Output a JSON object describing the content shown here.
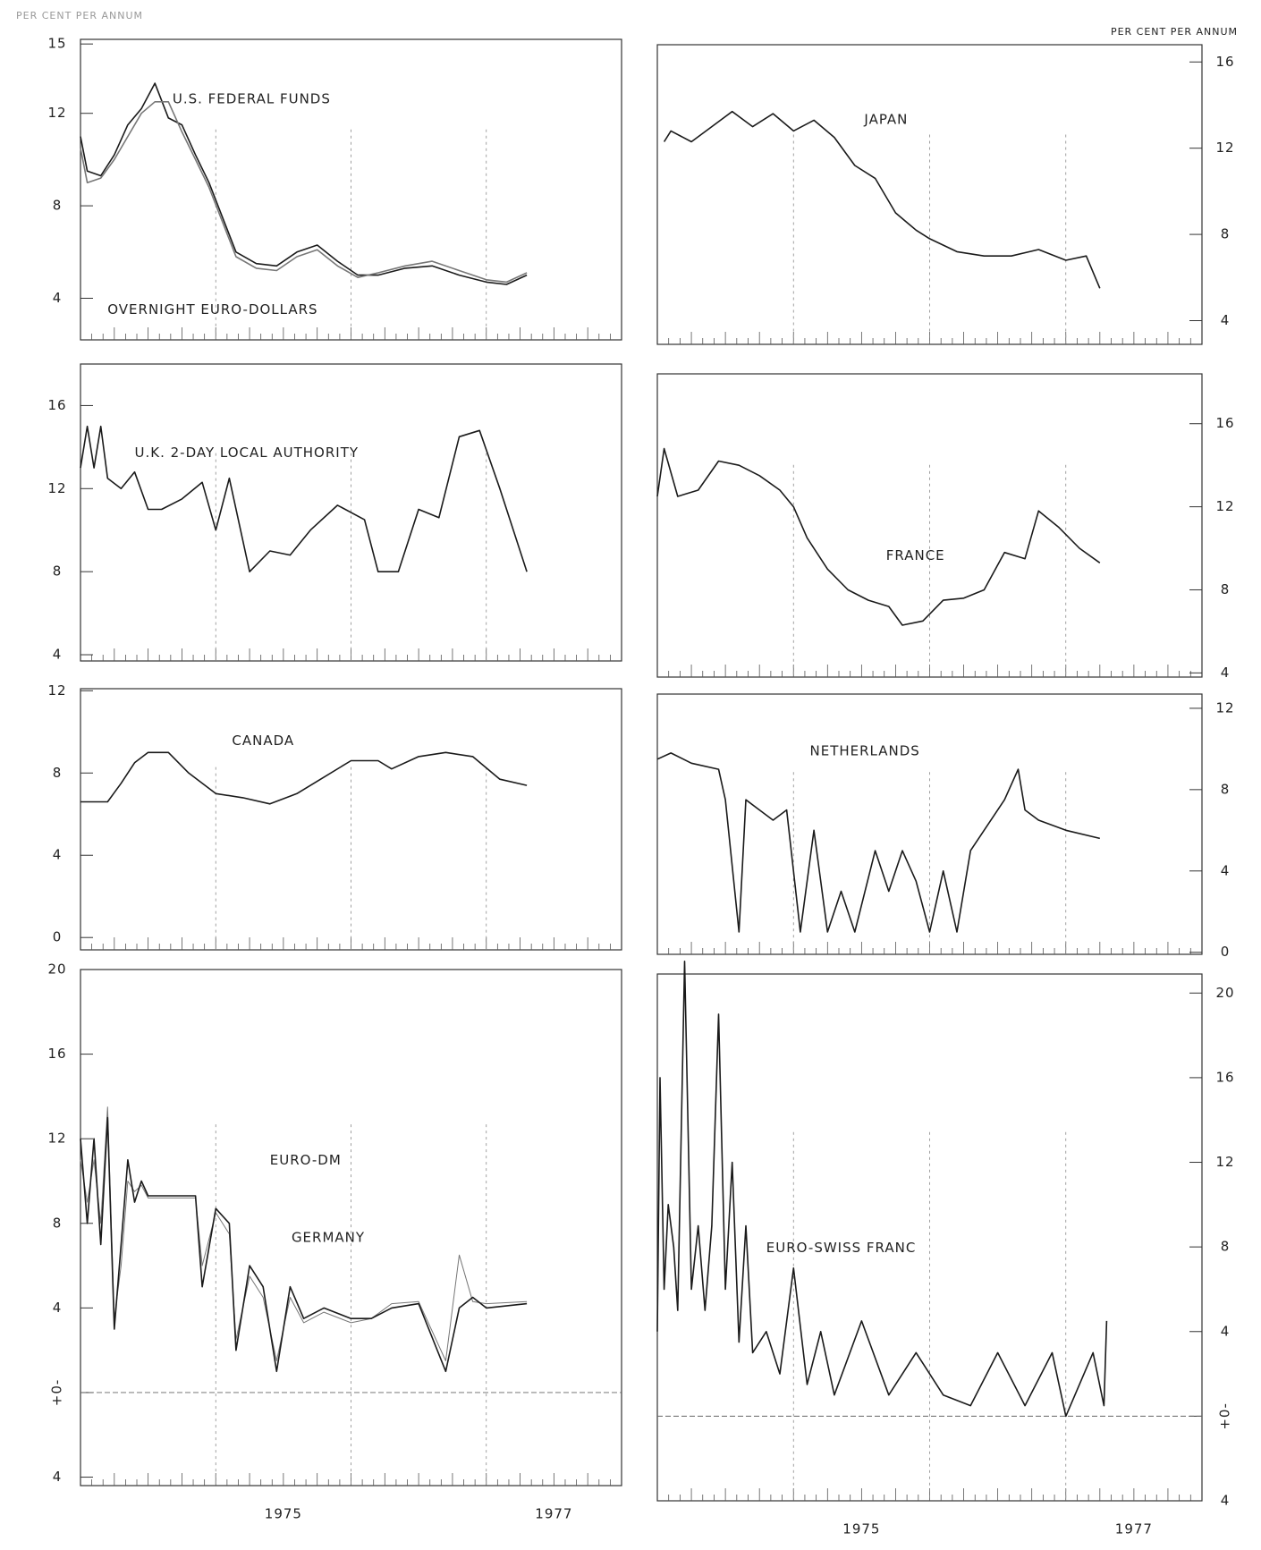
{
  "chart_data": [
    {
      "type": "line",
      "ylabel": "PER CENT PER ANNUM",
      "yaxis_side": "left",
      "xlim": [
        1974,
        1978
      ],
      "xticks": [
        1975,
        1976,
        1977
      ],
      "ylim": [
        2.2,
        15.2
      ],
      "yticks": [
        4,
        8,
        12,
        15
      ],
      "x": [
        1974.0,
        1974.05,
        1974.15,
        1974.25,
        1974.35,
        1974.45,
        1974.55,
        1974.65,
        1974.75,
        1974.85,
        1974.95,
        1975.05,
        1975.15,
        1975.3,
        1975.45,
        1975.6,
        1975.75,
        1975.9,
        1976.05,
        1976.2,
        1976.4,
        1976.6,
        1976.8,
        1977.0,
        1977.15,
        1977.3
      ],
      "series": [
        {
          "name": "U.S. FEDERAL FUNDS",
          "color": "#1a1a1a",
          "values": [
            11,
            9.5,
            9.3,
            10.2,
            11.5,
            12.2,
            13.3,
            11.8,
            11.5,
            10.2,
            9.0,
            7.5,
            6.0,
            5.5,
            5.4,
            6.0,
            6.3,
            5.6,
            5.0,
            5.0,
            5.3,
            5.4,
            5.0,
            4.7,
            4.6,
            5.0
          ]
        },
        {
          "name": "OVERNIGHT EURO-DOLLARS",
          "color": "#777777",
          "values": [
            10.5,
            9.0,
            9.2,
            10.0,
            11.0,
            12.0,
            12.5,
            12.5,
            11.2,
            10.0,
            8.8,
            7.3,
            5.8,
            5.3,
            5.2,
            5.8,
            6.1,
            5.4,
            4.9,
            5.1,
            5.4,
            5.6,
            5.2,
            4.8,
            4.7,
            5.1
          ]
        }
      ]
    },
    {
      "type": "line",
      "ylabel": "PER CENT PER ANNUM",
      "yaxis_side": "right",
      "xlim": [
        1974,
        1978
      ],
      "xticks": [
        1975,
        1976,
        1977
      ],
      "ylim": [
        2.9,
        16.8
      ],
      "yticks": [
        4,
        8,
        12,
        16
      ],
      "x": [
        1974.05,
        1974.1,
        1974.25,
        1974.4,
        1974.55,
        1974.7,
        1974.85,
        1975.0,
        1975.15,
        1975.3,
        1975.45,
        1975.6,
        1975.75,
        1975.9,
        1976.0,
        1976.2,
        1976.4,
        1976.6,
        1976.8,
        1977.0,
        1977.15,
        1977.25
      ],
      "series": [
        {
          "name": "JAPAN",
          "color": "#1a1a1a",
          "values": [
            12.3,
            12.8,
            12.3,
            13.0,
            13.7,
            13.0,
            13.6,
            12.8,
            13.3,
            12.5,
            11.2,
            10.6,
            9.0,
            8.2,
            7.8,
            7.2,
            7.0,
            7.0,
            7.3,
            6.8,
            7.0,
            5.5
          ]
        }
      ]
    },
    {
      "type": "line",
      "yaxis_side": "left",
      "xlim": [
        1974,
        1978
      ],
      "xticks": [
        1975,
        1976,
        1977
      ],
      "ylim": [
        3.7,
        18
      ],
      "yticks": [
        4,
        8,
        12,
        16
      ],
      "x": [
        1974.0,
        1974.05,
        1974.1,
        1974.15,
        1974.2,
        1974.3,
        1974.4,
        1974.5,
        1974.6,
        1974.75,
        1974.9,
        1975.0,
        1975.1,
        1975.25,
        1975.4,
        1975.55,
        1975.7,
        1975.9,
        1976.1,
        1976.2,
        1976.35,
        1976.5,
        1976.65,
        1976.8,
        1976.95,
        1977.1,
        1977.2,
        1977.3
      ],
      "series": [
        {
          "name": "U.K. 2-DAY LOCAL AUTHORITY",
          "color": "#1a1a1a",
          "values": [
            13,
            15,
            13,
            15,
            12.5,
            12,
            12.8,
            11,
            11,
            11.5,
            12.3,
            10,
            12.5,
            8,
            9,
            8.8,
            10,
            11.2,
            10.5,
            8,
            8,
            11,
            10.6,
            14.5,
            14.8,
            12,
            10,
            8
          ]
        }
      ]
    },
    {
      "type": "line",
      "yaxis_side": "right",
      "xlim": [
        1974,
        1978
      ],
      "xticks": [
        1975,
        1976,
        1977
      ],
      "ylim": [
        3.8,
        18.4
      ],
      "yticks": [
        4,
        8,
        12,
        16
      ],
      "x": [
        1974.0,
        1974.05,
        1974.15,
        1974.3,
        1974.45,
        1974.6,
        1974.75,
        1974.9,
        1975.0,
        1975.1,
        1975.25,
        1975.4,
        1975.55,
        1975.7,
        1975.8,
        1975.95,
        1976.1,
        1976.25,
        1976.4,
        1976.55,
        1976.7,
        1976.8,
        1976.95,
        1977.1,
        1977.25
      ],
      "series": [
        {
          "name": "FRANCE",
          "color": "#1a1a1a",
          "values": [
            12.5,
            14.8,
            12.5,
            12.8,
            14.2,
            14,
            13.5,
            12.8,
            12,
            10.5,
            9,
            8,
            7.5,
            7.2,
            6.3,
            6.5,
            7.5,
            7.6,
            8,
            9.8,
            9.5,
            11.8,
            11,
            10,
            9.3
          ]
        }
      ]
    },
    {
      "type": "line",
      "yaxis_side": "left",
      "xlim": [
        1974,
        1978
      ],
      "xticks": [
        1975,
        1976,
        1977
      ],
      "ylim": [
        -0.6,
        12.1
      ],
      "yticks": [
        0,
        4,
        8,
        12
      ],
      "x": [
        1974.0,
        1974.2,
        1974.3,
        1974.4,
        1974.5,
        1974.65,
        1974.8,
        1975.0,
        1975.2,
        1975.4,
        1975.6,
        1975.8,
        1976.0,
        1976.2,
        1976.3,
        1976.5,
        1976.7,
        1976.9,
        1977.1,
        1977.3
      ],
      "series": [
        {
          "name": "CANADA",
          "color": "#1a1a1a",
          "values": [
            6.6,
            6.6,
            7.5,
            8.5,
            9,
            9,
            8,
            7,
            6.8,
            6.5,
            7,
            7.8,
            8.6,
            8.6,
            8.2,
            8.8,
            9,
            8.8,
            7.7,
            7.4
          ]
        }
      ]
    },
    {
      "type": "line",
      "yaxis_side": "right",
      "xlim": [
        1974,
        1978
      ],
      "xticks": [
        1975,
        1976,
        1977
      ],
      "ylim": [
        -0.1,
        12.7
      ],
      "yticks": [
        0,
        4,
        8,
        12
      ],
      "x": [
        1974.0,
        1974.1,
        1974.25,
        1974.45,
        1974.5,
        1974.6,
        1974.65,
        1974.75,
        1974.85,
        1974.95,
        1975.05,
        1975.15,
        1975.25,
        1975.35,
        1975.45,
        1975.6,
        1975.7,
        1975.8,
        1975.9,
        1976.0,
        1976.1,
        1976.2,
        1976.3,
        1976.55,
        1976.65,
        1976.7,
        1976.8,
        1977.0,
        1977.25
      ],
      "series": [
        {
          "name": "NETHERLANDS",
          "color": "#1a1a1a",
          "values": [
            9.5,
            9.8,
            9.3,
            9,
            7.5,
            1,
            7.5,
            7,
            6.5,
            7,
            1,
            6,
            1,
            3,
            1,
            5,
            3,
            5,
            3.5,
            1,
            4,
            1,
            5,
            7.5,
            9,
            7,
            6.5,
            6,
            5.6
          ]
        }
      ]
    },
    {
      "type": "line",
      "yaxis_side": "left",
      "xlim": [
        1974,
        1978
      ],
      "xticks": [
        1975,
        1976,
        1977
      ],
      "xticklabels": [
        {
          "value": 1975.5,
          "label": "1975"
        },
        {
          "value": 1977.5,
          "label": "1977"
        }
      ],
      "ylim": [
        -4.4,
        20
      ],
      "yticks": [
        {
          "value": -4,
          "label": "4"
        },
        {
          "value": 0,
          "label": "+0-"
        },
        4,
        8,
        12,
        16,
        20
      ],
      "zero_line": true,
      "x": [
        1974.0,
        1974.05,
        1974.1,
        1974.15,
        1974.2,
        1974.25,
        1974.3,
        1974.35,
        1974.4,
        1974.45,
        1974.5,
        1974.6,
        1974.7,
        1974.85,
        1974.9,
        1975.0,
        1975.1,
        1975.15,
        1975.25,
        1975.35,
        1975.45,
        1975.55,
        1975.65,
        1975.8,
        1976.0,
        1976.15,
        1976.3,
        1976.5,
        1976.7,
        1976.8,
        1976.9,
        1977.0,
        1977.3
      ],
      "series": [
        {
          "name": "EURO-DM",
          "color": "#777777",
          "values": [
            11,
            9,
            11,
            8,
            13.5,
            3.5,
            6,
            10,
            9.5,
            9.8,
            9.2,
            9.2,
            9.2,
            9.2,
            6,
            8.5,
            7.5,
            2.5,
            5.5,
            4.5,
            1.5,
            4.5,
            3.3,
            3.8,
            3.3,
            3.5,
            4.2,
            4.3,
            1.5,
            6.5,
            4.3,
            4.2,
            4.3
          ]
        },
        {
          "name": "GERMANY",
          "color": "#1a1a1a",
          "values": [
            12,
            8,
            12,
            7,
            13,
            3,
            7,
            11,
            9,
            10,
            9.3,
            9.3,
            9.3,
            9.3,
            5,
            8.7,
            8,
            2,
            6,
            5,
            1,
            5,
            3.5,
            4,
            3.5,
            3.5,
            4,
            4.2,
            1,
            4,
            4.5,
            4,
            4.2
          ]
        }
      ]
    },
    {
      "type": "line",
      "yaxis_side": "right",
      "xlim": [
        1974,
        1978
      ],
      "xticks": [
        1975,
        1976,
        1977
      ],
      "xticklabels": [
        {
          "value": 1975.5,
          "label": "1975"
        },
        {
          "value": 1977.5,
          "label": "1977"
        }
      ],
      "ylim": [
        -4,
        20.9
      ],
      "yticks": [
        {
          "value": -4,
          "label": "4"
        },
        {
          "value": 0,
          "label": "+0-"
        },
        4,
        8,
        12,
        16,
        20
      ],
      "zero_line": true,
      "x": [
        1974.0,
        1974.02,
        1974.05,
        1974.08,
        1974.12,
        1974.15,
        1974.2,
        1974.25,
        1974.3,
        1974.35,
        1974.4,
        1974.45,
        1974.5,
        1974.55,
        1974.6,
        1974.65,
        1974.7,
        1974.8,
        1974.9,
        1975.0,
        1975.1,
        1975.2,
        1975.3,
        1975.5,
        1975.7,
        1975.9,
        1976.1,
        1976.3,
        1976.5,
        1976.7,
        1976.9,
        1977.0,
        1977.1,
        1977.2,
        1977.28,
        1977.3
      ],
      "series": [
        {
          "name": "EURO-SWISS FRANC",
          "color": "#1a1a1a",
          "values": [
            4,
            16,
            6,
            10,
            8,
            5,
            21.5,
            6,
            9,
            5,
            9,
            19,
            6,
            12,
            3.5,
            9,
            3,
            4,
            2,
            7,
            1.5,
            4,
            1,
            4.5,
            1,
            3,
            1,
            0.5,
            3,
            0.5,
            3,
            0,
            1.5,
            3,
            0.5,
            4.5
          ]
        }
      ]
    }
  ]
}
